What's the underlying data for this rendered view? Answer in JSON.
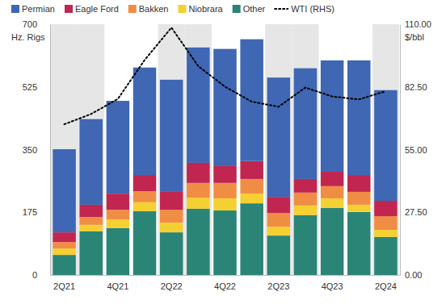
{
  "chart_data": {
    "type": "bar",
    "stacked": true,
    "legend": "top",
    "y_label": "Hz. Rigs",
    "y2_label": "$/bbl",
    "categories": [
      "2Q21",
      null,
      "4Q21",
      null,
      "2Q22",
      null,
      "4Q22",
      null,
      "2Q23",
      null,
      "4Q23",
      null,
      "2Q24"
    ],
    "ylim": [
      0,
      700
    ],
    "yticks": [
      0,
      175,
      350,
      525,
      700
    ],
    "y2lim": [
      0,
      110
    ],
    "y2ticks": [
      {
        "value": 0,
        "label": "0.00"
      },
      {
        "value": 27.5,
        "label": "27.50"
      },
      {
        "value": 55,
        "label": "55.00"
      },
      {
        "value": 82.5,
        "label": "82.50"
      },
      {
        "value": 110,
        "label": "110.00"
      }
    ],
    "series": [
      {
        "name": "Other",
        "color": "#2b8577",
        "type": "bar",
        "values": [
          56,
          122,
          131,
          178,
          119,
          185,
          180,
          200,
          110,
          167,
          187,
          176,
          106
        ]
      },
      {
        "name": "Niobrara",
        "color": "#f5d033",
        "type": "bar",
        "values": [
          18,
          18,
          24,
          25,
          27,
          31,
          34,
          27,
          25,
          27,
          27,
          20,
          20
        ]
      },
      {
        "name": "Bakken",
        "color": "#f08d45",
        "type": "bar",
        "values": [
          18,
          22,
          27,
          31,
          36,
          41,
          43,
          41,
          38,
          36,
          34,
          36,
          38
        ]
      },
      {
        "name": "Eagle Ford",
        "color": "#c0264f",
        "type": "bar",
        "values": [
          27,
          34,
          45,
          45,
          50,
          56,
          47,
          50,
          45,
          38,
          40,
          47,
          43
        ]
      },
      {
        "name": "Permian",
        "color": "#3f67b3",
        "type": "bar",
        "values": [
          232,
          239,
          259,
          300,
          313,
          322,
          327,
          340,
          333,
          309,
          311,
          320,
          309
        ]
      },
      {
        "name": "WTI (RHS)",
        "color": "#000000",
        "type": "line",
        "axis": "y2",
        "line_style": "dotted",
        "values": [
          66.1,
          70.6,
          77.2,
          94.3,
          108.5,
          91.6,
          82.6,
          76.0,
          73.8,
          82.2,
          78.3,
          77.0,
          80.6
        ]
      }
    ]
  }
}
